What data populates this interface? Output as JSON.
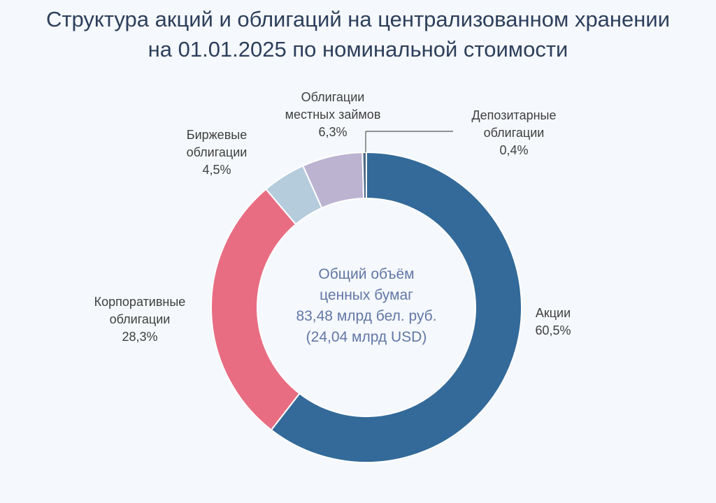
{
  "title": {
    "line1": "Структура акций и облигаций на централизованном хранении",
    "line2": "на 01.01.2025 по номинальной стоимости"
  },
  "center": {
    "line1": "Общий объём",
    "line2": "ценных бумаг",
    "line3": "83,48 млрд бел. руб.",
    "line4": "(24,04 млрд USD)"
  },
  "chart_data": {
    "type": "pie",
    "subtype": "donut",
    "title": "Структура акций и облигаций на централизованном хранении на 01.01.2025 по номинальной стоимости",
    "unit": "%",
    "slices": [
      {
        "label_line1": "Акции",
        "label_line2": "",
        "value": 60.5,
        "value_text": "60,5%",
        "color": "#336a99"
      },
      {
        "label_line1": "Корпоративные",
        "label_line2": "облигации",
        "value": 28.3,
        "value_text": "28,3%",
        "color": "#e86d83"
      },
      {
        "label_line1": "Биржевые",
        "label_line2": "облигации",
        "value": 4.5,
        "value_text": "4,5%",
        "color": "#b5ccdd"
      },
      {
        "label_line1": "Облигации",
        "label_line2": "местных займов",
        "value": 6.3,
        "value_text": "6,3%",
        "color": "#bcb3d1"
      },
      {
        "label_line1": "Депозитарные",
        "label_line2": "облигации",
        "value": 0.4,
        "value_text": "0,4%",
        "color": "#4f6a86"
      }
    ]
  }
}
